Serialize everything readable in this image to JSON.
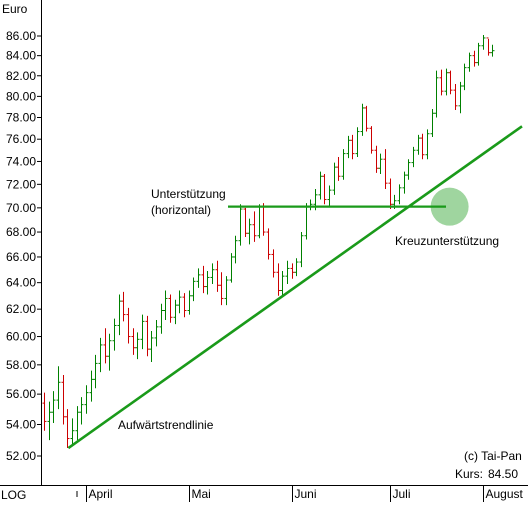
{
  "chart_data": {
    "type": "ohlc",
    "title": "",
    "xlabel": "",
    "ylabel": "Euro",
    "scale_label": "LOG",
    "y_scale": "log",
    "ylim": [
      50.6,
      88.0
    ],
    "yticks": [
      "52.00",
      "54.00",
      "56.00",
      "58.00",
      "60.00",
      "62.00",
      "64.00",
      "66.00",
      "68.00",
      "70.00",
      "72.00",
      "74.00",
      "76.00",
      "78.00",
      "80.00",
      "82.00",
      "84.00",
      "86.00"
    ],
    "ytick_values": [
      52,
      54,
      56,
      58,
      60,
      62,
      64,
      66,
      68,
      70,
      72,
      74,
      76,
      78,
      80,
      82,
      84,
      86
    ],
    "months": [
      "April",
      "Mai",
      "Juni",
      "Juli",
      "August"
    ],
    "month_start_index": [
      9,
      31,
      53,
      74,
      94
    ],
    "grid": false,
    "colors": {
      "up": "#008000",
      "down": "#cc0000",
      "trendline": "#1a9a1a",
      "highlight": "#7fc77f"
    },
    "series": [
      {
        "name": "",
        "ohlc": [
          [
            55.4,
            56.1,
            53.6,
            54.2
          ],
          [
            54.2,
            55.5,
            53.0,
            54.8
          ],
          [
            54.8,
            56.2,
            54.1,
            55.6
          ],
          [
            55.6,
            57.9,
            55.0,
            56.8
          ],
          [
            56.8,
            57.3,
            54.0,
            54.5
          ],
          [
            54.5,
            55.0,
            52.5,
            53.1
          ],
          [
            53.1,
            54.4,
            52.6,
            53.6
          ],
          [
            53.6,
            55.2,
            53.0,
            54.8
          ],
          [
            54.8,
            55.8,
            54.0,
            55.3
          ],
          [
            55.3,
            56.6,
            54.7,
            56.1
          ],
          [
            56.1,
            57.6,
            55.5,
            57.0
          ],
          [
            57.0,
            58.7,
            56.4,
            58.1
          ],
          [
            58.1,
            59.9,
            57.5,
            59.4
          ],
          [
            59.4,
            60.6,
            58.1,
            58.6
          ],
          [
            58.6,
            60.2,
            57.6,
            59.7
          ],
          [
            59.7,
            61.3,
            59.0,
            60.8
          ],
          [
            60.8,
            63.1,
            60.1,
            62.6
          ],
          [
            62.6,
            63.3,
            61.1,
            61.6
          ],
          [
            61.6,
            62.1,
            59.5,
            60.0
          ],
          [
            60.0,
            60.6,
            58.7,
            59.2
          ],
          [
            59.2,
            60.3,
            58.4,
            59.8
          ],
          [
            59.8,
            61.6,
            59.1,
            61.1
          ],
          [
            61.1,
            61.5,
            58.6,
            59.1
          ],
          [
            59.1,
            60.4,
            58.2,
            59.9
          ],
          [
            59.9,
            61.2,
            59.3,
            60.7
          ],
          [
            60.7,
            62.4,
            60.2,
            61.9
          ],
          [
            61.9,
            63.4,
            61.2,
            62.8
          ],
          [
            62.8,
            63.1,
            61.0,
            61.4
          ],
          [
            61.4,
            62.7,
            60.9,
            62.3
          ],
          [
            62.3,
            63.4,
            61.7,
            62.9
          ],
          [
            62.9,
            63.2,
            61.4,
            61.9
          ],
          [
            61.9,
            63.4,
            61.6,
            63.0
          ],
          [
            63.0,
            64.4,
            62.6,
            64.1
          ],
          [
            64.1,
            65.1,
            63.6,
            64.6
          ],
          [
            64.6,
            65.3,
            63.2,
            63.7
          ],
          [
            63.7,
            64.9,
            63.1,
            64.4
          ],
          [
            64.4,
            65.5,
            63.9,
            65.0
          ],
          [
            65.0,
            65.7,
            63.3,
            63.8
          ],
          [
            63.8,
            64.8,
            62.3,
            62.8
          ],
          [
            62.8,
            64.5,
            62.3,
            64.2
          ],
          [
            64.2,
            66.3,
            64.0,
            66.0
          ],
          [
            66.0,
            67.7,
            65.5,
            67.3
          ],
          [
            67.3,
            70.3,
            66.9,
            69.9
          ],
          [
            69.9,
            70.0,
            67.6,
            67.9
          ],
          [
            67.9,
            69.1,
            67.0,
            68.6
          ],
          [
            68.6,
            69.7,
            67.2,
            67.7
          ],
          [
            67.7,
            70.3,
            67.5,
            70.1
          ],
          [
            70.1,
            70.4,
            67.7,
            68.0
          ],
          [
            68.0,
            68.3,
            65.8,
            66.2
          ],
          [
            66.2,
            66.6,
            64.4,
            64.8
          ],
          [
            64.8,
            65.5,
            63.0,
            63.4
          ],
          [
            63.4,
            64.9,
            63.0,
            64.5
          ],
          [
            64.5,
            65.7,
            63.9,
            65.1
          ],
          [
            65.1,
            65.5,
            64.3,
            64.8
          ],
          [
            64.8,
            65.9,
            64.5,
            65.6
          ],
          [
            65.6,
            68.0,
            65.2,
            67.7
          ],
          [
            67.7,
            70.4,
            67.4,
            70.1
          ],
          [
            70.1,
            70.7,
            69.8,
            70.3
          ],
          [
            70.3,
            71.6,
            69.8,
            71.1
          ],
          [
            71.1,
            73.1,
            70.7,
            72.7
          ],
          [
            72.7,
            72.9,
            70.3,
            70.7
          ],
          [
            70.7,
            71.9,
            70.1,
            71.5
          ],
          [
            71.5,
            73.9,
            71.1,
            73.5
          ],
          [
            73.5,
            74.4,
            72.3,
            72.7
          ],
          [
            72.7,
            75.1,
            72.4,
            74.7
          ],
          [
            74.7,
            76.3,
            74.3,
            75.9
          ],
          [
            75.9,
            76.4,
            74.2,
            74.7
          ],
          [
            74.7,
            77.1,
            74.4,
            76.7
          ],
          [
            76.7,
            79.3,
            76.3,
            78.9
          ],
          [
            78.9,
            79.1,
            76.7,
            77.0
          ],
          [
            77.0,
            77.2,
            74.7,
            75.0
          ],
          [
            75.0,
            75.4,
            73.0,
            73.4
          ],
          [
            73.4,
            74.7,
            72.9,
            74.2
          ],
          [
            74.2,
            75.1,
            71.6,
            72.1
          ],
          [
            72.1,
            72.5,
            69.9,
            70.3
          ],
          [
            70.3,
            71.1,
            69.9,
            70.6
          ],
          [
            70.6,
            72.0,
            70.3,
            71.7
          ],
          [
            71.7,
            73.1,
            71.2,
            72.8
          ],
          [
            72.8,
            74.2,
            72.4,
            73.9
          ],
          [
            73.9,
            75.3,
            73.5,
            75.0
          ],
          [
            75.0,
            76.4,
            74.6,
            76.1
          ],
          [
            76.1,
            76.5,
            74.2,
            74.6
          ],
          [
            74.6,
            76.9,
            74.2,
            76.5
          ],
          [
            76.5,
            78.8,
            76.2,
            78.4
          ],
          [
            78.4,
            82.5,
            78.0,
            81.8
          ],
          [
            81.8,
            82.6,
            80.1,
            80.5
          ],
          [
            80.5,
            82.7,
            80.1,
            82.3
          ],
          [
            82.3,
            82.5,
            80.2,
            80.6
          ],
          [
            80.6,
            81.2,
            78.7,
            79.1
          ],
          [
            79.1,
            81.4,
            78.4,
            81.0
          ],
          [
            81.0,
            83.2,
            80.6,
            82.8
          ],
          [
            82.8,
            84.3,
            82.4,
            84.0
          ],
          [
            84.0,
            84.5,
            82.9,
            83.3
          ],
          [
            83.3,
            85.3,
            83.0,
            85.0
          ],
          [
            85.0,
            86.1,
            84.6,
            85.8
          ],
          [
            85.8,
            85.7,
            84.0,
            84.3
          ],
          [
            84.3,
            85.1,
            83.9,
            84.5
          ]
        ]
      }
    ],
    "annotations": {
      "support_label": "Unterstützung",
      "support_sub": "(horizontal)",
      "cross_label": "Kreuzunterstützung",
      "trend_label": "Aufwärtstrendlinie",
      "copyright": "(c) Tai-Pan",
      "kurs_label": "Kurs:",
      "kurs_value": "84.50"
    },
    "support_level": 70.1,
    "trendline": {
      "start": {
        "index": 5,
        "value": 52.5
      },
      "end": {
        "index": 110,
        "value": 77.0
      }
    },
    "cross_point": {
      "index": 86,
      "value": 70.1
    }
  }
}
